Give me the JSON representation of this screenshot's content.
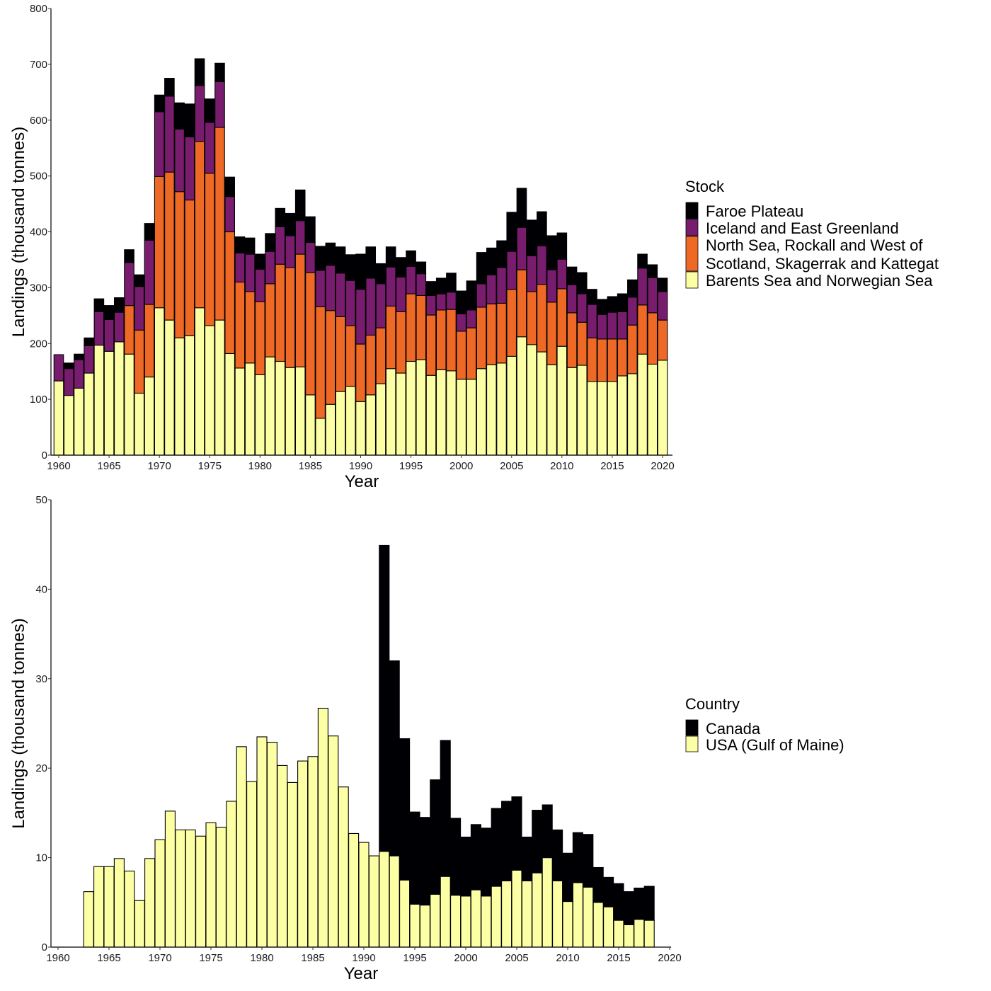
{
  "chart_data": [
    {
      "type": "bar",
      "stacked": true,
      "xlabel": "Year",
      "ylabel": "Landings (thousand tonnes)",
      "ylim": [
        0,
        800
      ],
      "yticks": [
        "0",
        "100",
        "200",
        "300",
        "400",
        "500",
        "600",
        "700",
        "800"
      ],
      "xticks": [
        "1960",
        "1965",
        "1970",
        "1975",
        "1980",
        "1985",
        "1990",
        "1995",
        "2000",
        "2005",
        "2010",
        "2015",
        "2020"
      ],
      "xlim": [
        1960,
        2020
      ],
      "grid": false,
      "legend": {
        "title": "Stock",
        "placement": "right",
        "entries": [
          {
            "label": "Faroe Plateau",
            "color": "#000004"
          },
          {
            "label": "Iceland and East Greenland",
            "color": "#781C6D"
          },
          {
            "label_lines": [
              "North Sea, Rockall and West of",
              "Scotland, Skagerrak and Kattegat"
            ],
            "color": "#ED6925"
          },
          {
            "label": "Barents Sea and Norwegian Sea",
            "color": "#FCFFA4"
          }
        ]
      },
      "x": [
        1960,
        1961,
        1962,
        1963,
        1964,
        1965,
        1966,
        1967,
        1968,
        1969,
        1970,
        1971,
        1972,
        1973,
        1974,
        1975,
        1976,
        1977,
        1978,
        1979,
        1980,
        1981,
        1982,
        1983,
        1984,
        1985,
        1986,
        1987,
        1988,
        1989,
        1990,
        1991,
        1992,
        1993,
        1994,
        1995,
        1996,
        1997,
        1998,
        1999,
        2000,
        2001,
        2002,
        2003,
        2004,
        2005,
        2006,
        2007,
        2008,
        2009,
        2010,
        2011,
        2012,
        2013,
        2014,
        2015,
        2016,
        2017,
        2018,
        2019,
        2020
      ],
      "series": [
        {
          "name": "Barents Sea and Norwegian Sea",
          "color": "#FCFFA4",
          "values": [
            133,
            107,
            120,
            147,
            197,
            186,
            203,
            181,
            111,
            140,
            264,
            242,
            210,
            214,
            264,
            232,
            242,
            182,
            156,
            165,
            144,
            176,
            168,
            157,
            158,
            108,
            66,
            91,
            114,
            123,
            96,
            108,
            128,
            155,
            147,
            168,
            171,
            143,
            153,
            151,
            136,
            136,
            155,
            162,
            165,
            177,
            212,
            198,
            185,
            162,
            195,
            157,
            161,
            132,
            132,
            132,
            142,
            146,
            181,
            163,
            170
          ]
        },
        {
          "name": "North Sea, Rockall and West of Scotland, Skagerrak and Kattegat",
          "color": "#ED6925",
          "values": [
            0,
            0,
            0,
            0,
            0,
            0,
            0,
            87,
            113,
            130,
            235,
            265,
            262,
            243,
            298,
            273,
            345,
            218,
            154,
            128,
            131,
            131,
            174,
            179,
            202,
            219,
            200,
            168,
            134,
            109,
            103,
            107,
            100,
            112,
            110,
            121,
            115,
            108,
            107,
            110,
            86,
            92,
            110,
            109,
            107,
            120,
            120,
            95,
            121,
            112,
            103,
            98,
            77,
            78,
            76,
            76,
            66,
            87,
            88,
            92,
            72
          ]
        },
        {
          "name": "Iceland and East Greenland",
          "color": "#781C6D",
          "values": [
            47,
            48,
            51,
            49,
            60,
            57,
            53,
            77,
            78,
            115,
            116,
            136,
            112,
            113,
            100,
            91,
            82,
            63,
            52,
            67,
            58,
            58,
            67,
            57,
            60,
            54,
            65,
            81,
            78,
            81,
            98,
            102,
            79,
            70,
            62,
            49,
            39,
            35,
            29,
            31,
            31,
            32,
            42,
            52,
            64,
            68,
            76,
            64,
            69,
            58,
            53,
            50,
            51,
            60,
            44,
            48,
            49,
            50,
            66,
            63,
            51
          ]
        },
        {
          "name": "Faroe Plateau",
          "color": "#000004",
          "values": [
            0,
            10,
            10,
            14,
            23,
            25,
            26,
            23,
            21,
            30,
            30,
            32,
            47,
            59,
            48,
            42,
            33,
            35,
            29,
            29,
            27,
            32,
            33,
            40,
            55,
            46,
            43,
            40,
            47,
            46,
            63,
            56,
            36,
            36,
            35,
            28,
            21,
            25,
            28,
            34,
            41,
            52,
            56,
            48,
            48,
            70,
            70,
            64,
            61,
            61,
            47,
            32,
            38,
            27,
            27,
            28,
            32,
            31,
            25,
            23,
            24
          ]
        }
      ]
    },
    {
      "type": "bar",
      "stacked": true,
      "xlabel": "Year",
      "ylabel": "Landings (thousand tonnes)",
      "ylim": [
        0,
        50
      ],
      "yticks": [
        "0",
        "10",
        "20",
        "30",
        "40",
        "50"
      ],
      "xticks": [
        "1960",
        "1965",
        "1970",
        "1975",
        "1980",
        "1985",
        "1990",
        "1995",
        "2000",
        "2005",
        "2010",
        "2015",
        "2020"
      ],
      "xlim": [
        1960,
        2020
      ],
      "grid": false,
      "legend": {
        "title": "Country",
        "placement": "right",
        "entries": [
          {
            "label": "Canada",
            "color": "#000004"
          },
          {
            "label": "USA (Gulf of Maine)",
            "color": "#FCFFA4"
          }
        ]
      },
      "x": [
        1963,
        1964,
        1965,
        1966,
        1967,
        1968,
        1969,
        1970,
        1971,
        1972,
        1973,
        1974,
        1975,
        1976,
        1977,
        1978,
        1979,
        1980,
        1981,
        1982,
        1983,
        1984,
        1985,
        1986,
        1987,
        1988,
        1989,
        1990,
        1991,
        1992,
        1993,
        1994,
        1995,
        1996,
        1997,
        1998,
        1999,
        2000,
        2001,
        2002,
        2003,
        2004,
        2005,
        2006,
        2007,
        2008,
        2009,
        2010,
        2011,
        2012,
        2013,
        2014,
        2015,
        2016,
        2017,
        2018
      ],
      "series": [
        {
          "name": "USA (Gulf of Maine)",
          "color": "#FCFFA4",
          "values": [
            6.2,
            9.0,
            9.0,
            9.9,
            8.5,
            5.2,
            9.9,
            12.0,
            15.2,
            13.1,
            13.1,
            12.4,
            13.9,
            13.4,
            16.3,
            22.4,
            18.5,
            23.5,
            22.9,
            20.3,
            18.4,
            20.8,
            21.3,
            26.7,
            23.6,
            17.9,
            12.7,
            11.7,
            10.2,
            10.7,
            10.2,
            7.5,
            4.8,
            4.7,
            5.9,
            7.9,
            5.8,
            5.7,
            6.4,
            5.7,
            6.8,
            7.4,
            8.6,
            7.4,
            8.3,
            10.0,
            7.4,
            5.1,
            7.2,
            6.7,
            5.0,
            4.5,
            3.0,
            2.5,
            3.1,
            3.0
          ]
        },
        {
          "name": "Canada",
          "color": "#000004",
          "values": [
            0,
            0,
            0,
            0,
            0,
            0,
            0,
            0,
            0,
            0,
            0,
            0,
            0,
            0,
            0,
            0,
            0,
            0,
            0,
            0,
            0,
            0,
            0,
            0,
            0,
            0,
            0,
            0,
            0,
            34.2,
            21.8,
            15.8,
            10.3,
            9.8,
            12.8,
            15.2,
            8.6,
            6.6,
            7.3,
            7.6,
            8.7,
            8.9,
            8.2,
            4.9,
            7.0,
            5.9,
            5.7,
            5.4,
            5.6,
            5.9,
            3.9,
            3.3,
            4.1,
            3.7,
            3.5,
            3.8
          ]
        }
      ]
    }
  ]
}
